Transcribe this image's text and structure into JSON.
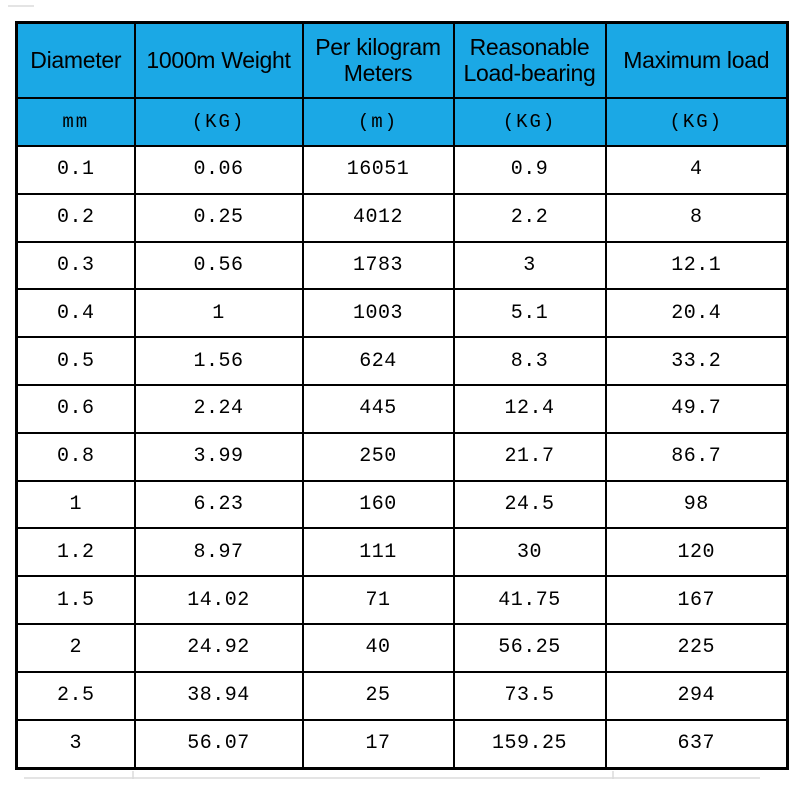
{
  "table": {
    "columns": [
      {
        "label": "Diameter",
        "unit": "mm"
      },
      {
        "label": "1000m Weight",
        "unit": "(KG)"
      },
      {
        "label": "Per kilogram\nMeters",
        "unit": "(m)"
      },
      {
        "label": "Reasonable\nLoad-bearing",
        "unit": "(KG)"
      },
      {
        "label": "Maximum load",
        "unit": "(KG)"
      }
    ],
    "rows": [
      [
        "0.1",
        "0.06",
        "16051",
        "0.9",
        "4"
      ],
      [
        "0.2",
        "0.25",
        "4012",
        "2.2",
        "8"
      ],
      [
        "0.3",
        "0.56",
        "1783",
        "3",
        "12.1"
      ],
      [
        "0.4",
        "1",
        "1003",
        "5.1",
        "20.4"
      ],
      [
        "0.5",
        "1.56",
        "624",
        "8.3",
        "33.2"
      ],
      [
        "0.6",
        "2.24",
        "445",
        "12.4",
        "49.7"
      ],
      [
        "0.8",
        "3.99",
        "250",
        "21.7",
        "86.7"
      ],
      [
        "1",
        "6.23",
        "160",
        "24.5",
        "98"
      ],
      [
        "1.2",
        "8.97",
        "111",
        "30",
        "120"
      ],
      [
        "1.5",
        "14.02",
        "71",
        "41.75",
        "167"
      ],
      [
        "2",
        "24.92",
        "40",
        "56.25",
        "225"
      ],
      [
        "2.5",
        "38.94",
        "25",
        "73.5",
        "294"
      ],
      [
        "3",
        "56.07",
        "17",
        "159.25",
        "637"
      ]
    ]
  },
  "colors": {
    "header_bg": "#1BA8E5",
    "border": "#000000",
    "text": "#000000"
  },
  "chart_data": {
    "type": "table",
    "columns": [
      "Diameter",
      "1000m Weight",
      "Per kilogram Meters",
      "Reasonable Load-bearing",
      "Maximum load"
    ],
    "units": [
      "mm",
      "KG",
      "m",
      "KG",
      "KG"
    ],
    "rows": [
      [
        0.1,
        0.06,
        16051,
        0.9,
        4
      ],
      [
        0.2,
        0.25,
        4012,
        2.2,
        8
      ],
      [
        0.3,
        0.56,
        1783,
        3,
        12.1
      ],
      [
        0.4,
        1,
        1003,
        5.1,
        20.4
      ],
      [
        0.5,
        1.56,
        624,
        8.3,
        33.2
      ],
      [
        0.6,
        2.24,
        445,
        12.4,
        49.7
      ],
      [
        0.8,
        3.99,
        250,
        21.7,
        86.7
      ],
      [
        1,
        6.23,
        160,
        24.5,
        98
      ],
      [
        1.2,
        8.97,
        111,
        30,
        120
      ],
      [
        1.5,
        14.02,
        71,
        41.75,
        167
      ],
      [
        2,
        24.92,
        40,
        56.25,
        225
      ],
      [
        2.5,
        38.94,
        25,
        73.5,
        294
      ],
      [
        3,
        56.07,
        17,
        159.25,
        637
      ]
    ],
    "layout": {
      "header_rows": 2,
      "header_background": "#1BA8E5",
      "grid": "on",
      "grid_color": "#000000"
    }
  }
}
